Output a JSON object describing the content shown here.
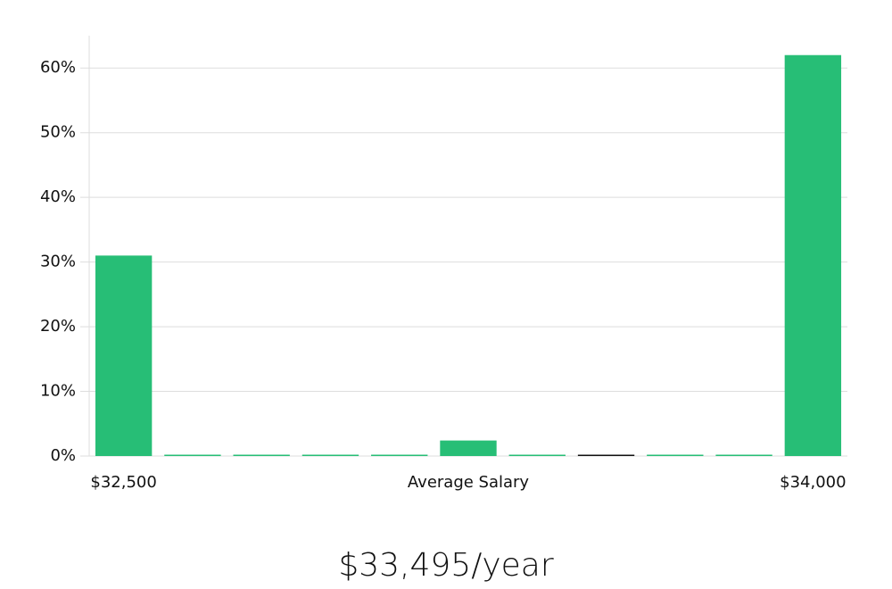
{
  "chart_data": {
    "type": "bar",
    "x_label": "Average Salary",
    "annotation": "$33,495/year",
    "categories": [
      "$32,500",
      null,
      null,
      null,
      null,
      null,
      null,
      null,
      null,
      null,
      "$34,000"
    ],
    "values": [
      31,
      0,
      0,
      0,
      0,
      2.4,
      0,
      0,
      0,
      0,
      62
    ],
    "colors": [
      "#27be76",
      "#27be76",
      "#27be76",
      "#27be76",
      "#27be76",
      "#27be76",
      "#27be76",
      "#111111",
      "#27be76",
      "#27be76",
      "#27be76"
    ],
    "ylim": [
      0,
      65
    ],
    "yticks": [
      {
        "value": 0,
        "label": "0%"
      },
      {
        "value": 10,
        "label": "10%"
      },
      {
        "value": 20,
        "label": "20%"
      },
      {
        "value": 30,
        "label": "30%"
      },
      {
        "value": 40,
        "label": "40%"
      },
      {
        "value": 50,
        "label": "50%"
      },
      {
        "value": 60,
        "label": "60%"
      }
    ],
    "grid": true
  }
}
